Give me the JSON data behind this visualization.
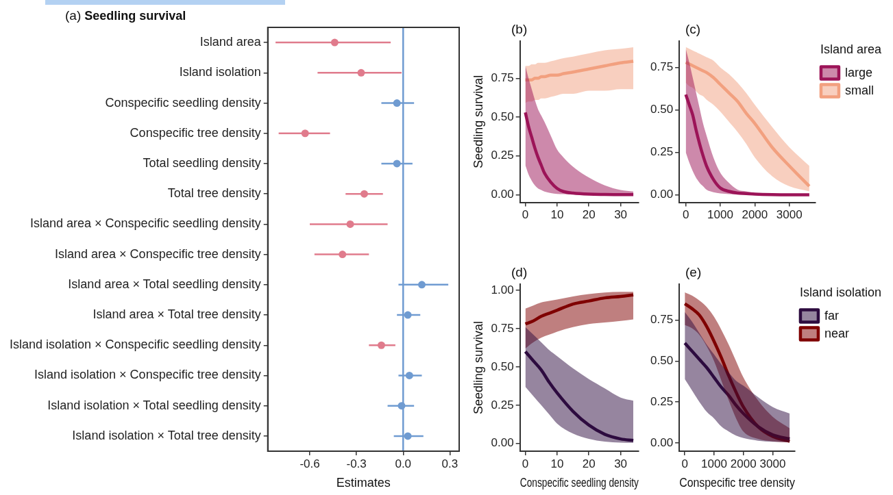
{
  "chart_data": [
    {
      "type": "scatter",
      "orientation": "horizontal",
      "title": "Seedling survival",
      "annotations": [
        "(a)"
      ],
      "xlabel": "Estimates",
      "categories": [
        "Island area",
        "Island isolation",
        "Conspecific seedling density",
        "Conspecific tree density",
        "Total seedling density",
        "Total tree density",
        "Island area × Conspecific seedling density",
        "Island area × Conspecific tree density",
        "Island area × Total seedling density",
        "Island area × Total tree density",
        "Island isolation × Conspecific seedling density",
        "Island isolation × Conspecific tree density",
        "Island isolation × Total seedling density",
        "Island isolation × Total tree density"
      ],
      "values": [
        -0.44,
        -0.27,
        -0.04,
        -0.63,
        -0.04,
        -0.25,
        -0.34,
        -0.39,
        0.12,
        0.03,
        -0.14,
        0.04,
        -0.01,
        0.03
      ],
      "errors": [
        [
          -0.82,
          -0.08
        ],
        [
          -0.55,
          -0.01
        ],
        [
          -0.14,
          0.07
        ],
        [
          -0.8,
          -0.47
        ],
        [
          -0.14,
          0.06
        ],
        [
          -0.37,
          -0.13
        ],
        [
          -0.6,
          -0.1
        ],
        [
          -0.57,
          -0.22
        ],
        [
          -0.03,
          0.29
        ],
        [
          -0.04,
          0.11
        ],
        [
          -0.22,
          -0.05
        ],
        [
          -0.03,
          0.12
        ],
        [
          -0.1,
          0.07
        ],
        [
          -0.06,
          0.13
        ]
      ],
      "colors": [
        "#e07b8c",
        "#e07b8c",
        "#6f9bd1",
        "#e07b8c",
        "#6f9bd1",
        "#e07b8c",
        "#e07b8c",
        "#e07b8c",
        "#6f9bd1",
        "#6f9bd1",
        "#e07b8c",
        "#6f9bd1",
        "#6f9bd1",
        "#6f9bd1"
      ],
      "xlim": [
        -0.87,
        0.36
      ],
      "xticks": [
        -0.6,
        -0.3,
        {
          "value": 0,
          "label": "0.0"
        },
        0.3
      ],
      "ref_lines": [
        {
          "axis": "x",
          "value": 0,
          "color": "#6f9bd1"
        }
      ]
    },
    {
      "type": "line",
      "annotations": [
        "(b)"
      ],
      "ylabel": "Seedling survival",
      "xlim": [
        -1.7,
        35.7
      ],
      "xticks": [
        0,
        10,
        20,
        30
      ],
      "ylim": [
        -0.05,
        0.99
      ],
      "yticks": [
        {
          "value": 0,
          "label": "0.00"
        },
        {
          "value": 0.25,
          "label": "0.25"
        },
        {
          "value": 0.5,
          "label": "0.50"
        },
        {
          "value": 0.75,
          "label": "0.75"
        }
      ],
      "x": [
        0,
        1,
        2,
        3,
        4,
        5,
        6,
        8,
        10,
        12,
        15,
        20,
        25,
        30,
        34
      ],
      "series": [
        {
          "color": "#9c1458",
          "values": [
            0.53,
            0.44,
            0.37,
            0.3,
            0.24,
            0.19,
            0.14,
            0.08,
            0.04,
            0.02,
            0.01,
            0.003,
            0.001,
            0,
            0
          ],
          "upper": [
            0.83,
            0.75,
            0.68,
            0.61,
            0.55,
            0.51,
            0.47,
            0.38,
            0.29,
            0.24,
            0.18,
            0.11,
            0.06,
            0.03,
            0.02
          ],
          "lower": [
            0.19,
            0.13,
            0.09,
            0.06,
            0.04,
            0.03,
            0.02,
            0.01,
            0.005,
            0.003,
            0.001,
            0,
            0,
            0,
            0
          ]
        },
        {
          "color": "#f2a07f",
          "values": [
            0.74,
            0.74,
            0.74,
            0.75,
            0.75,
            0.76,
            0.76,
            0.77,
            0.77,
            0.78,
            0.79,
            0.81,
            0.83,
            0.85,
            0.86
          ],
          "upper": [
            0.83,
            0.83,
            0.84,
            0.84,
            0.85,
            0.85,
            0.85,
            0.86,
            0.87,
            0.88,
            0.89,
            0.91,
            0.93,
            0.94,
            0.95
          ],
          "lower": [
            0.59,
            0.6,
            0.6,
            0.61,
            0.61,
            0.62,
            0.62,
            0.63,
            0.64,
            0.65,
            0.65,
            0.67,
            0.67,
            0.68,
            0.68
          ]
        }
      ]
    },
    {
      "type": "line",
      "annotations": [
        "(c)"
      ],
      "legend": "top right",
      "legend_title": "Island area",
      "xlim": [
        -190,
        3760
      ],
      "xticks": [
        0,
        1000,
        2000,
        3000
      ],
      "ylim": [
        -0.045,
        0.905
      ],
      "yticks": [
        {
          "value": 0,
          "label": "0.00"
        },
        {
          "value": 0.25,
          "label": "0.25"
        },
        {
          "value": 0.5,
          "label": "0.50"
        },
        {
          "value": 0.75,
          "label": "0.75"
        }
      ],
      "x": [
        0,
        100,
        200,
        300,
        400,
        500,
        600,
        800,
        1000,
        1250,
        1500,
        1750,
        2000,
        2500,
        3000,
        3580
      ],
      "series": [
        {
          "name": "large",
          "color": "#9c1458",
          "values": [
            0.59,
            0.53,
            0.47,
            0.38,
            0.3,
            0.23,
            0.17,
            0.09,
            0.04,
            0.02,
            0.01,
            0.007,
            0.004,
            0.001,
            0,
            0
          ],
          "upper": [
            0.86,
            0.78,
            0.69,
            0.6,
            0.51,
            0.42,
            0.35,
            0.22,
            0.13,
            0.07,
            0.03,
            0.02,
            0.01,
            0.003,
            0,
            0
          ],
          "lower": [
            0.25,
            0.19,
            0.14,
            0.1,
            0.07,
            0.05,
            0.03,
            0.015,
            0.008,
            0.004,
            0.002,
            0.001,
            0,
            0,
            0,
            0
          ]
        },
        {
          "name": "small",
          "color": "#f2a07f",
          "values": [
            0.78,
            0.77,
            0.76,
            0.75,
            0.74,
            0.73,
            0.72,
            0.69,
            0.65,
            0.6,
            0.55,
            0.48,
            0.42,
            0.28,
            0.17,
            0.05
          ],
          "upper": [
            0.87,
            0.86,
            0.85,
            0.84,
            0.83,
            0.82,
            0.81,
            0.79,
            0.75,
            0.71,
            0.66,
            0.6,
            0.53,
            0.4,
            0.28,
            0.17
          ],
          "lower": [
            0.66,
            0.64,
            0.63,
            0.61,
            0.59,
            0.58,
            0.56,
            0.53,
            0.49,
            0.43,
            0.37,
            0.3,
            0.22,
            0.11,
            0.05,
            0.02
          ]
        }
      ]
    },
    {
      "type": "line",
      "annotations": [
        "(d)"
      ],
      "ylabel": "Seedling survival",
      "xlabel": "Conspecific seedling density",
      "xlim": [
        -1.7,
        35.7
      ],
      "xticks": [
        0,
        10,
        20,
        30
      ],
      "ylim": [
        -0.05,
        1.04
      ],
      "yticks": [
        {
          "value": 0,
          "label": "0.00"
        },
        {
          "value": 0.25,
          "label": "0.25"
        },
        {
          "value": 0.5,
          "label": "0.50"
        },
        {
          "value": 0.75,
          "label": "0.75"
        },
        {
          "value": 1,
          "label": "1.00"
        }
      ],
      "x": [
        0,
        2.5,
        5,
        7.5,
        10,
        15,
        20,
        25,
        30,
        34
      ],
      "series": [
        {
          "color": "#2d0b3f",
          "values": [
            0.6,
            0.54,
            0.48,
            0.4,
            0.33,
            0.21,
            0.12,
            0.06,
            0.03,
            0.02
          ],
          "upper": [
            0.76,
            0.71,
            0.66,
            0.61,
            0.57,
            0.49,
            0.42,
            0.36,
            0.3,
            0.28
          ],
          "lower": [
            0.37,
            0.31,
            0.25,
            0.19,
            0.13,
            0.065,
            0.03,
            0.012,
            0.006,
            0.005
          ]
        },
        {
          "color": "#7f0000",
          "values": [
            0.78,
            0.8,
            0.83,
            0.85,
            0.87,
            0.91,
            0.93,
            0.95,
            0.96,
            0.97
          ],
          "upper": [
            0.88,
            0.9,
            0.92,
            0.93,
            0.94,
            0.96,
            0.975,
            0.985,
            0.99,
            0.99
          ],
          "lower": [
            0.62,
            0.66,
            0.69,
            0.71,
            0.73,
            0.76,
            0.78,
            0.79,
            0.8,
            0.81
          ]
        }
      ]
    },
    {
      "type": "line",
      "annotations": [
        "(e)"
      ],
      "xlabel": "Conspecific tree density",
      "legend": "top right",
      "legend_title": "Island isolation",
      "xlim": [
        -190,
        3760
      ],
      "xticks": [
        0,
        1000,
        2000,
        3000
      ],
      "ylim": [
        -0.05,
        0.97
      ],
      "yticks": [
        {
          "value": 0,
          "label": "0.00"
        },
        {
          "value": 0.25,
          "label": "0.25"
        },
        {
          "value": 0.5,
          "label": "0.50"
        },
        {
          "value": 0.75,
          "label": "0.75"
        }
      ],
      "x": [
        0,
        250,
        500,
        750,
        1000,
        1250,
        1500,
        1750,
        2000,
        2500,
        3000,
        3580
      ],
      "series": [
        {
          "name": "far",
          "color": "#2d0b3f",
          "values": [
            0.61,
            0.56,
            0.51,
            0.46,
            0.4,
            0.34,
            0.29,
            0.23,
            0.18,
            0.1,
            0.05,
            0.025
          ],
          "upper": [
            0.8,
            0.74,
            0.67,
            0.6,
            0.54,
            0.48,
            0.43,
            0.38,
            0.35,
            0.28,
            0.22,
            0.18
          ],
          "lower": [
            0.39,
            0.32,
            0.25,
            0.19,
            0.15,
            0.1,
            0.07,
            0.045,
            0.03,
            0.014,
            0.007,
            0.005
          ]
        },
        {
          "name": "near",
          "color": "#7f0000",
          "values": [
            0.85,
            0.82,
            0.78,
            0.71,
            0.62,
            0.52,
            0.41,
            0.31,
            0.22,
            0.1,
            0.04,
            0.01
          ],
          "upper": [
            0.92,
            0.9,
            0.87,
            0.83,
            0.77,
            0.69,
            0.6,
            0.5,
            0.4,
            0.26,
            0.16,
            0.09
          ],
          "lower": [
            0.72,
            0.7,
            0.66,
            0.59,
            0.5,
            0.38,
            0.26,
            0.15,
            0.07,
            0.025,
            0.01,
            0.004
          ]
        }
      ]
    }
  ]
}
